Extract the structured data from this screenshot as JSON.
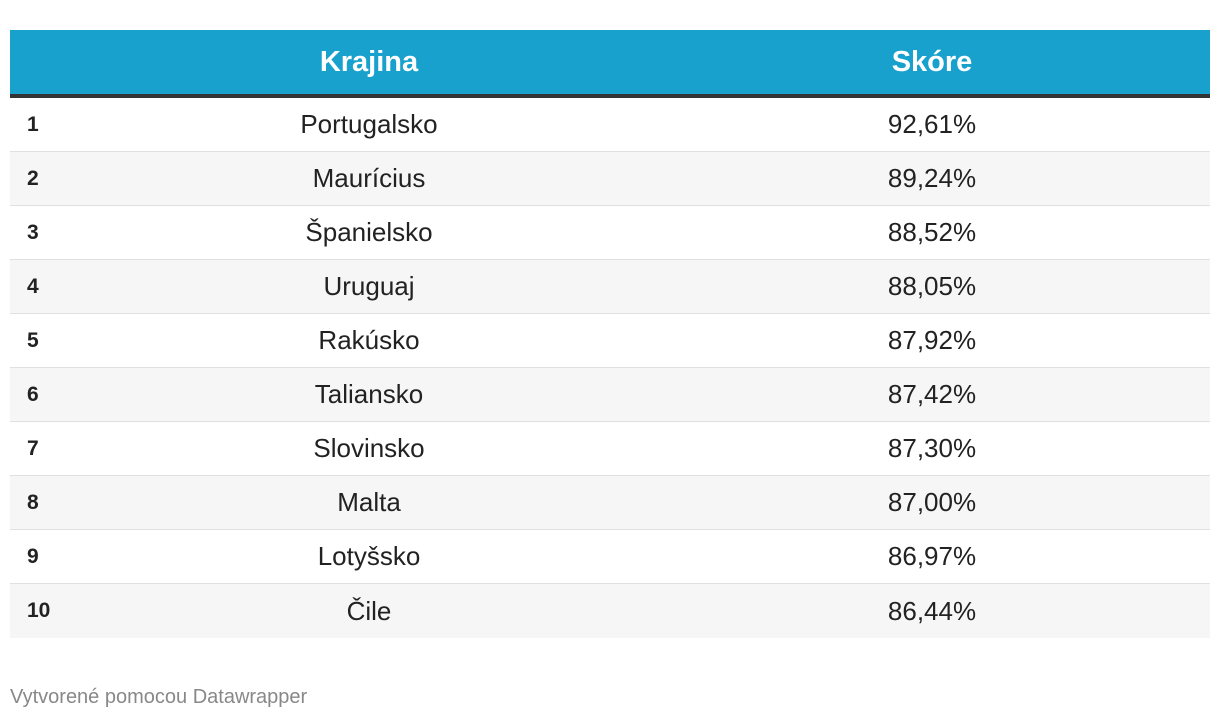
{
  "chart_data": {
    "type": "table",
    "columns": [
      "",
      "Krajina",
      "Skóre"
    ],
    "rows": [
      {
        "rank": "1",
        "country": "Portugalsko",
        "score": "92,61%"
      },
      {
        "rank": "2",
        "country": "Maurícius",
        "score": "89,24%"
      },
      {
        "rank": "3",
        "country": "Španielsko",
        "score": "88,52%"
      },
      {
        "rank": "4",
        "country": "Uruguaj",
        "score": "88,05%"
      },
      {
        "rank": "5",
        "country": "Rakúsko",
        "score": "87,92%"
      },
      {
        "rank": "6",
        "country": "Taliansko",
        "score": "87,42%"
      },
      {
        "rank": "7",
        "country": "Slovinsko",
        "score": "87,30%"
      },
      {
        "rank": "8",
        "country": "Malta",
        "score": "87,00%"
      },
      {
        "rank": "9",
        "country": "Lotyšsko",
        "score": "86,97%"
      },
      {
        "rank": "10",
        "country": "Čile",
        "score": "86,44%"
      }
    ]
  },
  "header": {
    "country_label": "Krajina",
    "score_label": "Skóre"
  },
  "footer": {
    "credit": "Vytvorené pomocou Datawrapper"
  },
  "colors": {
    "header_bg": "#18a1cd",
    "header_text": "#ffffff",
    "row_alt_bg": "#f6f6f6"
  }
}
